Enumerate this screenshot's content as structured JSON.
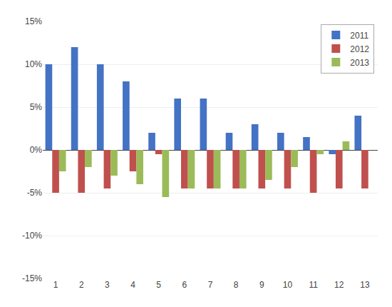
{
  "chart_data": {
    "type": "bar",
    "categories": [
      1,
      2,
      3,
      4,
      5,
      6,
      7,
      8,
      9,
      10,
      11,
      12,
      13
    ],
    "series": [
      {
        "name": "2011",
        "color": "#4472C4",
        "values": [
          10,
          12,
          10,
          8,
          2,
          6,
          6,
          2,
          3,
          2,
          1.5,
          -0.5,
          4
        ]
      },
      {
        "name": "2012",
        "color": "#C0504D",
        "values": [
          -5,
          -5,
          -4.5,
          -2.5,
          -0.5,
          -4.5,
          -4.5,
          -4.5,
          -4.5,
          -4.5,
          -5,
          -4.5,
          -4.5
        ]
      },
      {
        "name": "2013",
        "color": "#9BBB59",
        "values": [
          -2.5,
          -2,
          -3,
          -4,
          -5.5,
          -4.5,
          -4.5,
          -4.5,
          -3.5,
          -2,
          -0.5,
          1,
          0
        ]
      }
    ],
    "ylim": [
      -15,
      15
    ],
    "yticks": [
      {
        "value": -15,
        "label": "-15%"
      },
      {
        "value": -10,
        "label": "-10%"
      },
      {
        "value": -5,
        "label": "-5%"
      },
      {
        "value": 0,
        "label": "0%"
      },
      {
        "value": 5,
        "label": "5%"
      },
      {
        "value": 10,
        "label": "10%"
      },
      {
        "value": 15,
        "label": "15%"
      }
    ],
    "grid": true,
    "legend": "upper right"
  }
}
